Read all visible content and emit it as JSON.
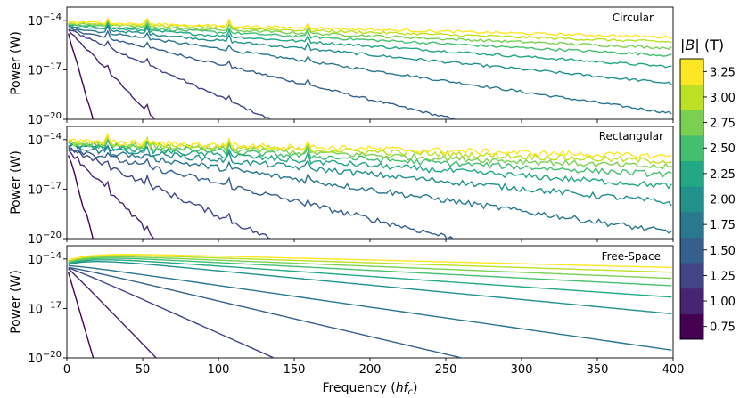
{
  "chart_data": {
    "type": "line",
    "xlabel": "Frequency (hf_c)",
    "ylabel": "Power (W)",
    "xlim": [
      0,
      400
    ],
    "xticks": [
      "0",
      "50",
      "100",
      "150",
      "200",
      "250",
      "300",
      "350",
      "400"
    ],
    "yscale": "log",
    "ylim_exponent": [
      -20,
      -13.2
    ],
    "yticks": [
      {
        "base": "10",
        "exp": "−14"
      },
      {
        "base": "10",
        "exp": "−17"
      },
      {
        "base": "10",
        "exp": "−20"
      }
    ],
    "panels": [
      {
        "label": "Circular"
      },
      {
        "label": "Rectangular"
      },
      {
        "label": "Free-Space"
      }
    ],
    "colorbar": {
      "title": "|B| (T)",
      "ticks": [
        "0.75",
        "1.00",
        "1.25",
        "1.50",
        "1.75",
        "2.00",
        "2.25",
        "2.50",
        "2.75",
        "3.00",
        "3.25"
      ],
      "range": [
        0.625,
        3.375
      ]
    },
    "series": [
      {
        "B": 0.75,
        "color": "#440154",
        "start_log": -14.5,
        "slope": -0.32
      },
      {
        "B": 1.0,
        "color": "#482475",
        "start_log": -14.5,
        "slope": -0.095
      },
      {
        "B": 1.25,
        "color": "#414487",
        "start_log": -14.5,
        "slope": -0.041
      },
      {
        "B": 1.5,
        "color": "#355f8d",
        "start_log": -14.5,
        "slope": -0.0215
      },
      {
        "B": 1.75,
        "color": "#2a788e",
        "start_log": -14.4,
        "slope": -0.0131
      },
      {
        "B": 2.0,
        "color": "#21918c",
        "start_log": -14.35,
        "slope": -0.0087
      },
      {
        "B": 2.25,
        "color": "#22a884",
        "start_log": -14.3,
        "slope": -0.0063
      },
      {
        "B": 2.5,
        "color": "#44bf70",
        "start_log": -14.25,
        "slope": -0.0047
      },
      {
        "B": 2.75,
        "color": "#7ad151",
        "start_log": -14.2,
        "slope": -0.0037
      },
      {
        "B": 3.0,
        "color": "#bddf26",
        "start_log": -14.15,
        "slope": -0.0029
      },
      {
        "B": 3.25,
        "color": "#fde725",
        "start_log": -14.1,
        "slope": -0.0023
      }
    ]
  }
}
